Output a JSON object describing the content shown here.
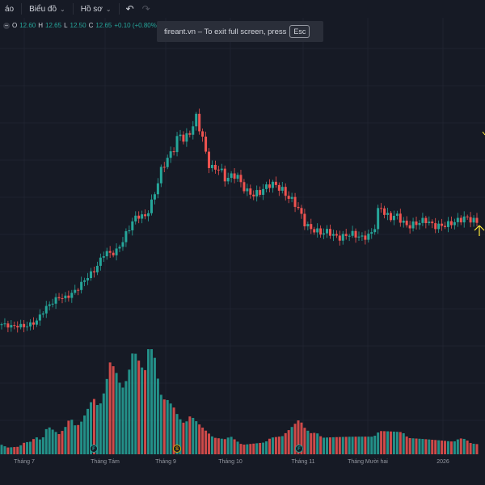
{
  "toolbar": {
    "partial_label": "áo",
    "chart_menu": "Biểu đồ",
    "profile_menu": "Hồ sơ"
  },
  "legend": {
    "open_key": "O",
    "open": "12.60",
    "high_key": "H",
    "high": "12.65",
    "low_key": "L",
    "low": "12.50",
    "close_key": "C",
    "close": "12.65",
    "change": "+0.10 (+0.80%)"
  },
  "toast": {
    "message": "fireant.vn – To exit full screen, press",
    "key": "Esc"
  },
  "colors": {
    "up": "#26a69a",
    "down": "#ef5350",
    "background": "#161a25",
    "grid": "#1f2330"
  },
  "chart_data": {
    "type": "candlestick",
    "x_axis_labels": [
      "Tháng 7",
      "Tháng Tám",
      "Tháng 9",
      "Tháng 10",
      "Tháng 11",
      "Tháng Mười hai",
      "2026"
    ],
    "price_path": [
      7.2,
      7.15,
      7.1,
      7.15,
      7.1,
      7.2,
      7.3,
      7.7,
      8.0,
      8.2,
      8.4,
      8.35,
      8.5,
      8.7,
      9.0,
      9.3,
      9.5,
      9.9,
      10.4,
      10.3,
      10.4,
      10.8,
      11.3,
      11.8,
      12.0,
      11.9,
      12.4,
      13.2,
      14.1,
      14.5,
      14.9,
      15.6,
      15.3,
      15.7,
      16.3,
      15.5,
      14.3,
      14.0,
      14.1,
      13.6,
      13.7,
      13.8,
      13.3,
      13.0,
      12.9,
      13.0,
      13.2,
      13.4,
      13.3,
      13.1,
      12.8,
      12.6,
      12.2,
      11.6,
      11.4,
      11.3,
      11.2,
      11.3,
      11.1,
      11.0,
      11.1,
      11.2,
      11.1,
      11.0,
      11.1,
      11.3,
      12.5,
      12.0,
      11.9,
      12.0,
      11.7,
      11.5,
      11.6,
      11.7,
      11.8,
      11.6,
      11.5,
      11.55,
      11.6,
      11.7,
      11.8,
      11.9,
      11.8,
      11.7
    ],
    "volume_path": [
      3,
      2,
      2,
      2,
      3,
      3,
      4,
      3,
      6,
      5,
      4,
      5,
      7,
      5,
      6,
      8,
      10,
      8,
      11,
      16,
      14,
      11,
      13,
      18,
      16,
      14,
      23,
      15,
      10,
      10,
      9,
      7,
      6,
      8,
      7,
      6,
      5,
      4,
      4,
      4,
      5,
      4,
      3,
      3,
      3,
      3,
      3,
      4,
      4,
      4,
      5,
      6,
      7,
      5,
      4,
      4,
      3,
      3,
      3,
      3,
      3,
      3,
      3,
      3,
      3,
      3,
      4,
      4,
      4,
      4,
      4,
      3,
      3,
      3,
      3,
      3,
      3,
      3,
      3,
      3,
      4,
      4,
      3,
      3
    ],
    "event_markers": [
      {
        "label": "F",
        "color": "#26a69a"
      },
      {
        "label": "S",
        "color": "#e0a800"
      },
      {
        "label": "F",
        "color": "#26a69a"
      }
    ]
  }
}
